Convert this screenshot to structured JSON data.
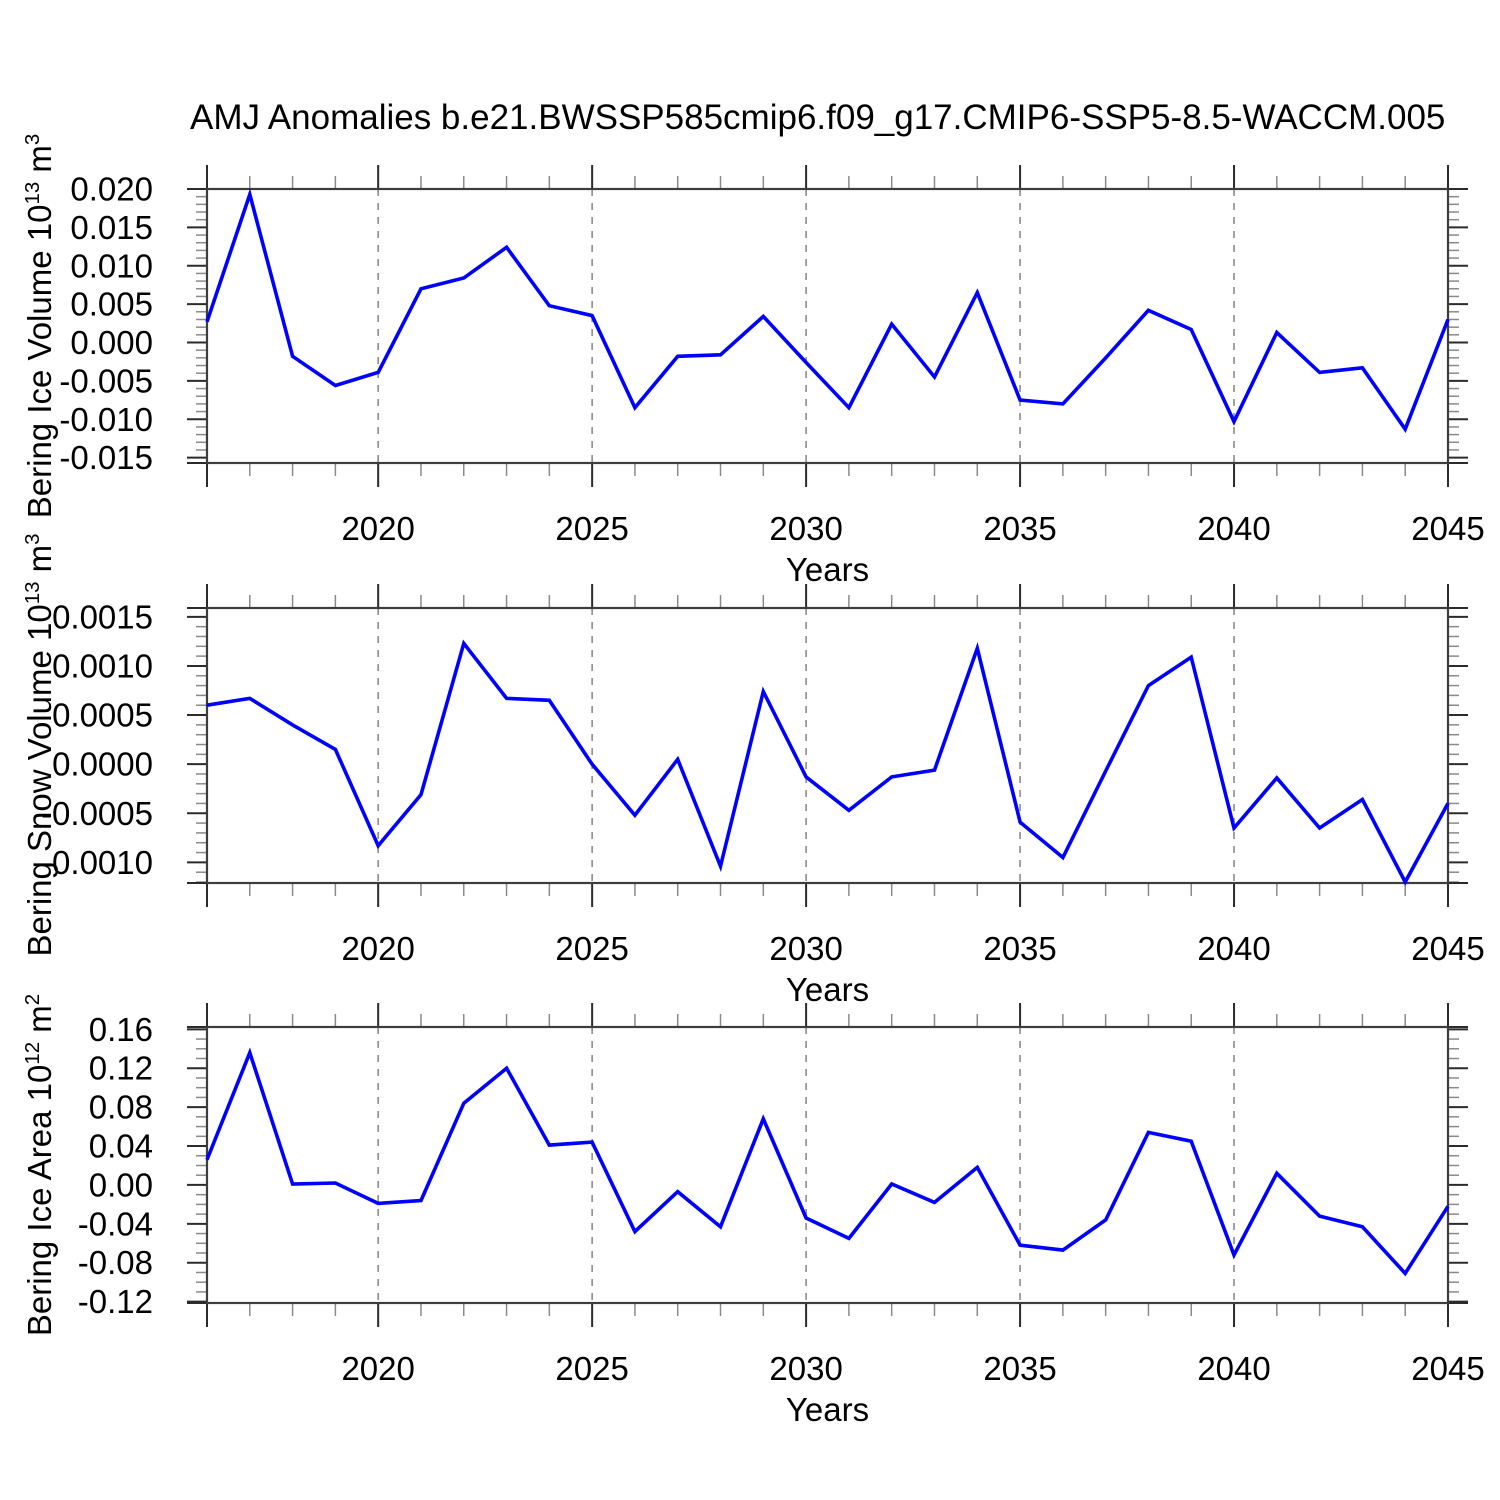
{
  "title": "AMJ Anomalies b.e21.BWSSP585cmip6.f09_g17.CMIP6-SSP5-8.5-WACCM.005",
  "styles": {
    "line_color": "#0000ff",
    "grid_color": "#8c8c8c",
    "axis_color": "#3d3d3d",
    "major_tick_color": "#2b2b2b",
    "minor_tick_color": "#8a8a8a",
    "text_color": "#000000"
  },
  "chart_data": [
    {
      "type": "line",
      "id": "bering-ice-volume",
      "ylabel": "Bering Ice Volume 10^13 m^3",
      "ylabel_segments": [
        {
          "t": "Bering Ice Volume 10"
        },
        {
          "t": "13",
          "sup": true
        },
        {
          "t": " m"
        },
        {
          "t": "3",
          "sup": true
        }
      ],
      "xlabel": "Years",
      "x": [
        2016,
        2017,
        2018,
        2019,
        2020,
        2021,
        2022,
        2023,
        2024,
        2025,
        2026,
        2027,
        2028,
        2029,
        2030,
        2031,
        2032,
        2033,
        2034,
        2035,
        2036,
        2037,
        2038,
        2039,
        2040,
        2041,
        2042,
        2043,
        2044,
        2045
      ],
      "values": [
        0.0027,
        0.0193,
        -0.0018,
        -0.0056,
        -0.0039,
        0.007,
        0.0084,
        0.0124,
        0.0048,
        0.0035,
        -0.0085,
        -0.0018,
        -0.0016,
        0.0034,
        -0.0026,
        -0.0085,
        0.0024,
        -0.0045,
        0.0065,
        -0.0075,
        -0.008,
        -0.002,
        0.0042,
        0.0017,
        -0.0103,
        0.0013,
        -0.0039,
        -0.0033,
        -0.0113,
        0.003
      ],
      "xlim": [
        2016,
        2045
      ],
      "ylim": [
        -0.0157,
        0.02
      ],
      "xticks": [
        2020,
        2025,
        2030,
        2035,
        2040,
        2045
      ],
      "xtick_labels": [
        "2020",
        "2025",
        "2030",
        "2035",
        "2040",
        "2045"
      ],
      "x_minor_step": 1,
      "grid_x": [
        2020,
        2025,
        2030,
        2035,
        2040
      ],
      "yticks": [
        0.02,
        0.015,
        0.01,
        0.005,
        0.0,
        -0.005,
        -0.01,
        -0.015
      ],
      "ytick_labels": [
        "0.020",
        "0.015",
        "0.010",
        "0.005",
        "0.000",
        "-0.005",
        "-0.010",
        "-0.015"
      ],
      "y_minor_step": 0.001
    },
    {
      "type": "line",
      "id": "bering-snow-volume",
      "ylabel": "Bering Snow Volume 10^13 m^3",
      "ylabel_segments": [
        {
          "t": "Bering Snow Volume 10"
        },
        {
          "t": "13",
          "sup": true
        },
        {
          "t": " m"
        },
        {
          "t": "3",
          "sup": true
        }
      ],
      "xlabel": "Years",
      "x": [
        2016,
        2017,
        2018,
        2019,
        2020,
        2021,
        2022,
        2023,
        2024,
        2025,
        2026,
        2027,
        2028,
        2029,
        2030,
        2031,
        2032,
        2033,
        2034,
        2035,
        2036,
        2037,
        2038,
        2039,
        2040,
        2041,
        2042,
        2043,
        2044,
        2045
      ],
      "values": [
        0.0006,
        0.00067,
        0.0004,
        0.00015,
        -0.00083,
        -0.00031,
        0.00123,
        0.00067,
        0.00065,
        0.0,
        -0.00052,
        5e-05,
        -0.00104,
        0.00074,
        -0.00013,
        -0.00047,
        -0.00013,
        -6e-05,
        0.00118,
        -0.00059,
        -0.00095,
        -7e-05,
        0.0008,
        0.00109,
        -0.00065,
        -0.00014,
        -0.00065,
        -0.00036,
        -0.0012,
        -0.0004
      ],
      "xlim": [
        2016,
        2045
      ],
      "ylim": [
        -0.00121,
        0.00159
      ],
      "xticks": [
        2020,
        2025,
        2030,
        2035,
        2040,
        2045
      ],
      "xtick_labels": [
        "2020",
        "2025",
        "2030",
        "2035",
        "2040",
        "2045"
      ],
      "x_minor_step": 1,
      "grid_x": [
        2020,
        2025,
        2030,
        2035,
        2040
      ],
      "yticks": [
        0.0015,
        0.001,
        0.0005,
        0.0,
        -0.0005,
        -0.001
      ],
      "ytick_labels": [
        "0.0015",
        "0.0010",
        "0.0005",
        "0.0000",
        "-0.0005",
        "-0.0010"
      ],
      "y_minor_step": 0.0001
    },
    {
      "type": "line",
      "id": "bering-ice-area",
      "ylabel": "Bering Ice Area 10^12 m^2",
      "ylabel_segments": [
        {
          "t": "Bering Ice Area 10"
        },
        {
          "t": "12",
          "sup": true
        },
        {
          "t": " m"
        },
        {
          "t": "2",
          "sup": true
        }
      ],
      "xlabel": "Years",
      "x": [
        2016,
        2017,
        2018,
        2019,
        2020,
        2021,
        2022,
        2023,
        2024,
        2025,
        2026,
        2027,
        2028,
        2029,
        2030,
        2031,
        2032,
        2033,
        2034,
        2035,
        2036,
        2037,
        2038,
        2039,
        2040,
        2041,
        2042,
        2043,
        2044,
        2045
      ],
      "values": [
        0.026,
        0.136,
        0.001,
        0.002,
        -0.019,
        -0.016,
        0.084,
        0.12,
        0.041,
        0.044,
        -0.048,
        -0.007,
        -0.043,
        0.068,
        -0.034,
        -0.055,
        0.001,
        -0.018,
        0.018,
        -0.062,
        -0.067,
        -0.036,
        0.054,
        0.045,
        -0.072,
        0.012,
        -0.032,
        -0.043,
        -0.091,
        -0.022
      ],
      "xlim": [
        2016,
        2045
      ],
      "ylim": [
        -0.1214,
        0.1624
      ],
      "xticks": [
        2020,
        2025,
        2030,
        2035,
        2040,
        2045
      ],
      "xtick_labels": [
        "2020",
        "2025",
        "2030",
        "2035",
        "2040",
        "2045"
      ],
      "x_minor_step": 1,
      "grid_x": [
        2020,
        2025,
        2030,
        2035,
        2040
      ],
      "yticks": [
        0.16,
        0.12,
        0.08,
        0.04,
        0.0,
        -0.04,
        -0.08,
        -0.12
      ],
      "ytick_labels": [
        "0.16",
        "0.12",
        "0.08",
        "0.04",
        "0.00",
        "-0.04",
        "-0.08",
        "-0.12"
      ],
      "y_minor_step": 0.01
    }
  ]
}
